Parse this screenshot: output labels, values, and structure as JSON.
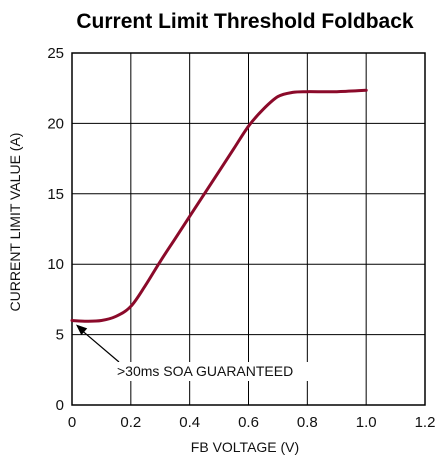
{
  "chart_data": {
    "type": "line",
    "title": "Current Limit Threshold Foldback",
    "xlabel": "FB VOLTAGE (V)",
    "ylabel": "CURRENT LIMIT VALUE (A)",
    "xlim": [
      0,
      1.2
    ],
    "ylim": [
      0,
      25
    ],
    "x_ticks": [
      "0",
      "0.2",
      "0.4",
      "0.6",
      "0.8",
      "1.0",
      "1.2"
    ],
    "y_ticks": [
      "0",
      "5",
      "10",
      "15",
      "20",
      "25"
    ],
    "grid": true,
    "line_color": "#8b0a2a",
    "series": [
      {
        "x": [
          0,
          0.05,
          0.1,
          0.15,
          0.2,
          0.25,
          0.3,
          0.35,
          0.4,
          0.45,
          0.5,
          0.55,
          0.6,
          0.65,
          0.7,
          0.75,
          0.8,
          0.9,
          1.0
        ],
        "y": [
          6.0,
          5.95,
          6.0,
          6.3,
          7.0,
          8.5,
          10.2,
          11.8,
          13.4,
          15.0,
          16.6,
          18.2,
          19.8,
          21.0,
          21.9,
          22.2,
          22.25,
          22.25,
          22.35
        ]
      }
    ],
    "annotations": [
      {
        "text": ">30ms SOA GUARANTEED",
        "target_x": 0,
        "target_y": 6.0
      }
    ]
  }
}
